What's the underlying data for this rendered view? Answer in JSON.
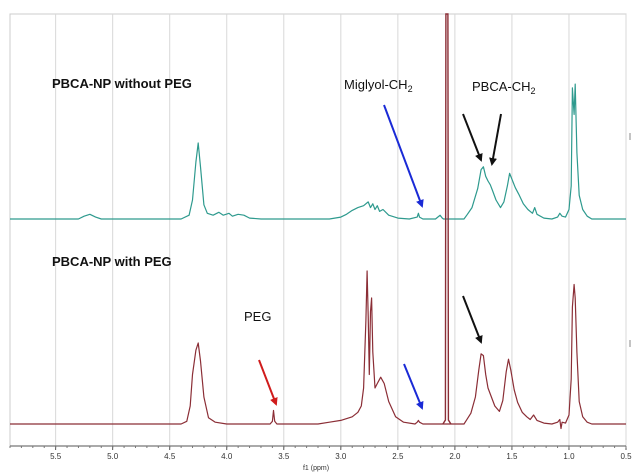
{
  "chart_data": {
    "type": "line",
    "xlabel": "f1 (ppm)",
    "x_range": [
      5.9,
      0.5
    ],
    "x_reversed": true,
    "x_ticks": [
      5.5,
      5.0,
      4.5,
      4.0,
      3.5,
      3.0,
      2.5,
      2.0,
      1.5,
      1.0,
      0.5
    ],
    "x_tick_labels": [
      "5.5",
      "5.0",
      "4.5",
      "4.0",
      "3.5",
      "3.0",
      "2.5",
      "2.0",
      "1.5",
      "1.0",
      "0.5"
    ],
    "grid": "vertical",
    "series": [
      {
        "name": "PBCA-NP without PEG",
        "color": "#2e9a8e",
        "points": [
          [
            5.9,
            0.0
          ],
          [
            5.3,
            0.0
          ],
          [
            5.25,
            0.03
          ],
          [
            5.2,
            0.05
          ],
          [
            5.15,
            0.02
          ],
          [
            5.1,
            0.0
          ],
          [
            4.4,
            0.0
          ],
          [
            4.33,
            0.04
          ],
          [
            4.3,
            0.2
          ],
          [
            4.27,
            0.6
          ],
          [
            4.25,
            0.8
          ],
          [
            4.23,
            0.55
          ],
          [
            4.2,
            0.15
          ],
          [
            4.17,
            0.06
          ],
          [
            4.12,
            0.04
          ],
          [
            4.07,
            0.07
          ],
          [
            4.03,
            0.04
          ],
          [
            3.98,
            0.06
          ],
          [
            3.95,
            0.03
          ],
          [
            3.9,
            0.05
          ],
          [
            3.85,
            0.04
          ],
          [
            3.8,
            0.01
          ],
          [
            3.7,
            0.0
          ],
          [
            3.1,
            0.0
          ],
          [
            3.0,
            0.02
          ],
          [
            2.95,
            0.05
          ],
          [
            2.9,
            0.09
          ],
          [
            2.85,
            0.12
          ],
          [
            2.8,
            0.14
          ],
          [
            2.76,
            0.18
          ],
          [
            2.74,
            0.12
          ],
          [
            2.72,
            0.16
          ],
          [
            2.7,
            0.1
          ],
          [
            2.68,
            0.14
          ],
          [
            2.66,
            0.08
          ],
          [
            2.63,
            0.1
          ],
          [
            2.58,
            0.04
          ],
          [
            2.5,
            0.01
          ],
          [
            2.4,
            0.0
          ],
          [
            2.33,
            0.02
          ],
          [
            2.32,
            0.06
          ],
          [
            2.31,
            0.02
          ],
          [
            2.28,
            0.0
          ],
          [
            2.17,
            0.0
          ],
          [
            2.15,
            0.02
          ],
          [
            2.13,
            0.04
          ],
          [
            2.11,
            0.01
          ],
          [
            2.1,
            0.0
          ],
          [
            1.92,
            0.0
          ],
          [
            1.89,
            0.05
          ],
          [
            1.85,
            0.12
          ],
          [
            1.8,
            0.32
          ],
          [
            1.77,
            0.52
          ],
          [
            1.75,
            0.55
          ],
          [
            1.73,
            0.45
          ],
          [
            1.71,
            0.4
          ],
          [
            1.69,
            0.36
          ],
          [
            1.67,
            0.3
          ],
          [
            1.64,
            0.2
          ],
          [
            1.6,
            0.12
          ],
          [
            1.57,
            0.18
          ],
          [
            1.54,
            0.35
          ],
          [
            1.52,
            0.48
          ],
          [
            1.5,
            0.42
          ],
          [
            1.47,
            0.33
          ],
          [
            1.44,
            0.26
          ],
          [
            1.4,
            0.16
          ],
          [
            1.36,
            0.1
          ],
          [
            1.32,
            0.06
          ],
          [
            1.3,
            0.12
          ],
          [
            1.28,
            0.05
          ],
          [
            1.22,
            0.01
          ],
          [
            1.15,
            0.0
          ],
          [
            1.1,
            0.02
          ],
          [
            1.08,
            0.06
          ],
          [
            1.06,
            0.03
          ],
          [
            1.03,
            0.02
          ],
          [
            1.0,
            0.1
          ],
          [
            0.98,
            0.35
          ],
          [
            0.97,
            1.38
          ],
          [
            0.955,
            1.1
          ],
          [
            0.945,
            1.42
          ],
          [
            0.93,
            0.7
          ],
          [
            0.91,
            0.25
          ],
          [
            0.88,
            0.1
          ],
          [
            0.84,
            0.03
          ],
          [
            0.8,
            0.0
          ],
          [
            0.5,
            0.0
          ]
        ]
      },
      {
        "name": "PBCA-NP with PEG",
        "color": "#8b2e36",
        "points": [
          [
            5.9,
            0.0
          ],
          [
            4.4,
            0.0
          ],
          [
            4.35,
            0.03
          ],
          [
            4.32,
            0.2
          ],
          [
            4.3,
            0.55
          ],
          [
            4.27,
            0.82
          ],
          [
            4.25,
            0.9
          ],
          [
            4.23,
            0.7
          ],
          [
            4.2,
            0.3
          ],
          [
            4.16,
            0.07
          ],
          [
            4.1,
            0.02
          ],
          [
            4.0,
            0.0
          ],
          [
            3.62,
            0.0
          ],
          [
            3.6,
            0.03
          ],
          [
            3.59,
            0.15
          ],
          [
            3.58,
            0.03
          ],
          [
            3.56,
            0.0
          ],
          [
            3.2,
            0.0
          ],
          [
            3.1,
            0.02
          ],
          [
            3.0,
            0.04
          ],
          [
            2.9,
            0.08
          ],
          [
            2.85,
            0.13
          ],
          [
            2.82,
            0.2
          ],
          [
            2.8,
            0.4
          ],
          [
            2.78,
            1.15
          ],
          [
            2.77,
            1.7
          ],
          [
            2.76,
            1.2
          ],
          [
            2.75,
            0.55
          ],
          [
            2.74,
            1.25
          ],
          [
            2.73,
            1.4
          ],
          [
            2.72,
            0.8
          ],
          [
            2.7,
            0.4
          ],
          [
            2.68,
            0.45
          ],
          [
            2.65,
            0.52
          ],
          [
            2.62,
            0.45
          ],
          [
            2.58,
            0.25
          ],
          [
            2.52,
            0.08
          ],
          [
            2.45,
            0.02
          ],
          [
            2.35,
            0.0
          ],
          [
            2.33,
            0.02
          ],
          [
            2.32,
            0.04
          ],
          [
            2.31,
            0.02
          ],
          [
            2.28,
            0.0
          ],
          [
            2.1,
            0.0
          ],
          [
            1.92,
            0.0
          ],
          [
            1.9,
            0.04
          ],
          [
            1.86,
            0.12
          ],
          [
            1.82,
            0.3
          ],
          [
            1.79,
            0.6
          ],
          [
            1.77,
            0.78
          ],
          [
            1.75,
            0.76
          ],
          [
            1.73,
            0.55
          ],
          [
            1.71,
            0.4
          ],
          [
            1.68,
            0.3
          ],
          [
            1.65,
            0.2
          ],
          [
            1.61,
            0.14
          ],
          [
            1.58,
            0.26
          ],
          [
            1.55,
            0.58
          ],
          [
            1.53,
            0.72
          ],
          [
            1.51,
            0.6
          ],
          [
            1.48,
            0.38
          ],
          [
            1.45,
            0.24
          ],
          [
            1.41,
            0.13
          ],
          [
            1.37,
            0.08
          ],
          [
            1.34,
            0.05
          ],
          [
            1.31,
            0.1
          ],
          [
            1.28,
            0.04
          ],
          [
            1.22,
            0.01
          ],
          [
            1.15,
            0.0
          ],
          [
            1.1,
            0.02
          ],
          [
            1.08,
            0.05
          ],
          [
            1.07,
            -0.05
          ],
          [
            1.06,
            0.02
          ],
          [
            1.03,
            0.01
          ],
          [
            1.0,
            0.1
          ],
          [
            0.98,
            0.5
          ],
          [
            0.97,
            1.3
          ],
          [
            0.955,
            1.55
          ],
          [
            0.945,
            1.4
          ],
          [
            0.93,
            0.8
          ],
          [
            0.91,
            0.25
          ],
          [
            0.88,
            0.08
          ],
          [
            0.84,
            0.02
          ],
          [
            0.8,
            0.0
          ],
          [
            0.5,
            0.0
          ]
        ]
      }
    ],
    "solvent_peak": {
      "x": 2.07,
      "color": "#8b2e36"
    },
    "annotations": {
      "label_without_peg": "PBCA-NP without PEG",
      "label_with_peg": "PBCA-NP with PEG",
      "label_miglyol": "Miglyol-CH",
      "label_miglyol_sub": "2",
      "label_pbca": "PBCA-CH",
      "label_pbca_sub": "2",
      "label_peg": "PEG"
    },
    "arrows": [
      {
        "target": "Miglyol-CH2 (top spectrum)",
        "x": 2.32,
        "trace": "top",
        "color": "#1a2ad6"
      },
      {
        "target": "PBCA-CH2 (top spectrum)",
        "x": 1.8,
        "trace": "top",
        "color": "#111111"
      },
      {
        "target": "PBCA-CH2 (top spectrum)",
        "x": 1.73,
        "trace": "top",
        "color": "#111111"
      },
      {
        "target": "PEG (bottom spectrum)",
        "x": 3.59,
        "trace": "bottom",
        "color": "#d01c1c"
      },
      {
        "target": "Miglyol (bottom spectrum)",
        "x": 2.32,
        "trace": "bottom",
        "color": "#1a2ad6"
      },
      {
        "target": "PBCA-CH2 (bottom spectrum)",
        "x": 1.78,
        "trace": "bottom",
        "color": "#111111"
      }
    ]
  }
}
